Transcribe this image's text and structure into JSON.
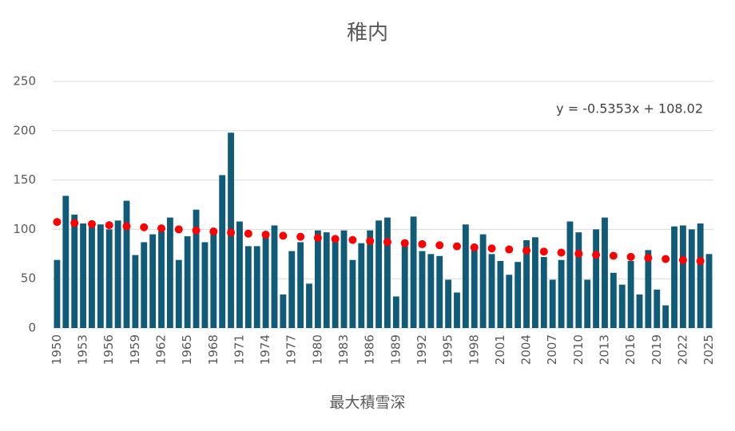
{
  "chart_data": {
    "type": "bar",
    "title": "稚内",
    "x_label": "最大積雪深",
    "categories": [
      "1950",
      null,
      null,
      "1953",
      null,
      null,
      "1956",
      null,
      null,
      "1959",
      null,
      null,
      "1962",
      null,
      null,
      "1965",
      null,
      null,
      "1968",
      null,
      null,
      "1971",
      null,
      null,
      "1974",
      null,
      null,
      "1977",
      null,
      null,
      "1980",
      null,
      null,
      "1983",
      null,
      null,
      "1986",
      null,
      null,
      "1989",
      null,
      null,
      "1992",
      null,
      null,
      "1995",
      null,
      null,
      "1998",
      null,
      null,
      "2001",
      null,
      null,
      "2004",
      null,
      null,
      "2007",
      null,
      null,
      "2010",
      null,
      null,
      "2013",
      null,
      null,
      "2016",
      null,
      null,
      "2019",
      null,
      null,
      "2022",
      null,
      null,
      "2025"
    ],
    "values": [
      69,
      134,
      115,
      106,
      107,
      105,
      100,
      109,
      129,
      74,
      87,
      95,
      98,
      112,
      69,
      93,
      120,
      87,
      98,
      155,
      198,
      108,
      83,
      83,
      97,
      104,
      34,
      78,
      87,
      45,
      99,
      97,
      90,
      99,
      69,
      86,
      99,
      109,
      112,
      32,
      89,
      113,
      78,
      75,
      73,
      49,
      36,
      105,
      79,
      95,
      75,
      68,
      54,
      67,
      89,
      92,
      72,
      49,
      69,
      108,
      97,
      49,
      100,
      112,
      56,
      44,
      68,
      34,
      79,
      39,
      23,
      103,
      104,
      100,
      106,
      75
    ],
    "color": "#0f5b78",
    "trendline": {
      "label": "y = -0.5353x + 108.02",
      "slope": -0.5353,
      "intercept": 108.02,
      "color": "#ff0000"
    },
    "ylim": [
      0,
      250
    ],
    "yticks": [
      0,
      50,
      100,
      150,
      200,
      250
    ],
    "grid": true
  }
}
